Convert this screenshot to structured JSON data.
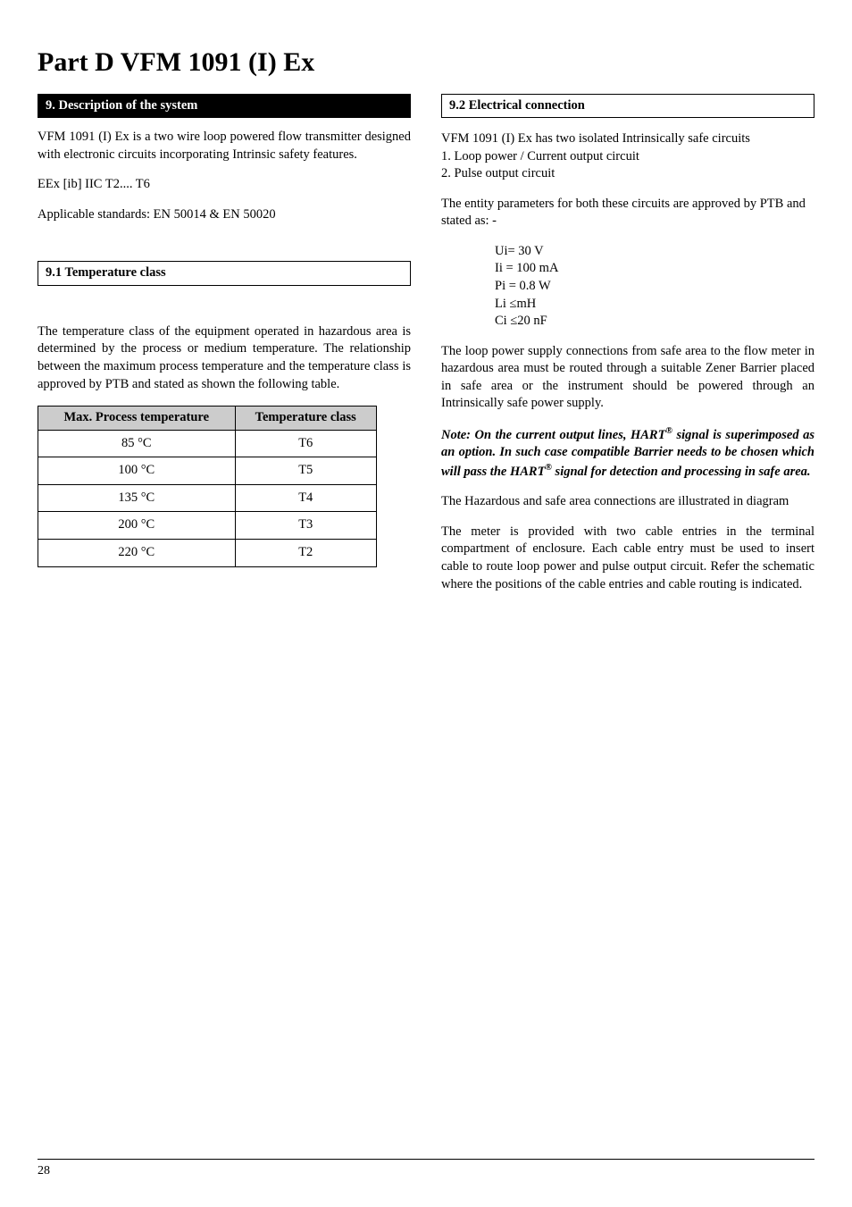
{
  "page": {
    "title": "Part D VFM 1091 (I) Ex",
    "number": "28"
  },
  "left": {
    "section9": {
      "header": "9. Description of the system",
      "p1": "VFM 1091 (I) Ex is a two wire loop powered flow transmitter designed with electronic circuits incorporating Intrinsic safety features.",
      "p2": "EEx [ib] IIC T2.... T6",
      "p3": "Applicable standards: EN 50014 & EN 50020"
    },
    "section91": {
      "header": "9.1 Temperature class",
      "p1": "The temperature class of the equipment operated in hazardous area  is determined by the process or medium temperature. The relationship between the maximum process temperature and the temperature class is approved by PTB and stated as shown the following table."
    },
    "table": {
      "col1_header": "Max. Process temperature",
      "col2_header": "Temperature class",
      "rows": [
        {
          "c1": "85 °C",
          "c2": "T6"
        },
        {
          "c1": "100 °C",
          "c2": "T5"
        },
        {
          "c1": "135 °C",
          "c2": "T4"
        },
        {
          "c1": "200 °C",
          "c2": "T3"
        },
        {
          "c1": "220 °C",
          "c2": "T2"
        }
      ],
      "header_bg": "#cccccc",
      "border_color": "#000000"
    }
  },
  "right": {
    "section92": {
      "header": "9.2 Electrical connection",
      "intro": "VFM 1091 (I) Ex has two isolated Intrinsically safe circuits",
      "li1": "1. Loop power / Current output circuit",
      "li2": "2. Pulse output circuit",
      "p_entity_intro": "The entity parameters for both these circuits are approved by PTB and stated as: -",
      "entity": {
        "ui": "Ui= 30 V",
        "ii": "Ii = 100 mA",
        "pi": "Pi = 0.8 W",
        "li": "Li ≤mH",
        "ci": "Ci ≤20 nF"
      },
      "p_loop": "The loop power supply connections from safe area to the flow meter in hazardous area must be routed through a suitable Zener Barrier placed in safe area or the instrument should be powered through an Intrinsically safe power supply.",
      "note_pre": "Note: On the current output lines, HART",
      "note_sup1": "®",
      "note_mid": " signal is superimposed as an option. In such case compatible Barrier needs to be chosen which will pass the HART",
      "note_sup2": "®",
      "note_post": " signal for detection and processing in safe area.",
      "p_diagram": "The Hazardous and safe area connections are illustrated in diagram",
      "p_cable": "The meter is provided with two cable entries in the terminal compartment of enclosure. Each cable entry must be used to insert cable to route loop power and pulse output circuit. Refer the schematic where the positions of the cable entries and cable routing is indicated."
    }
  }
}
